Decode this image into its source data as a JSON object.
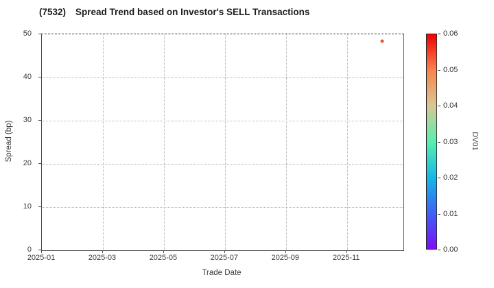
{
  "header": {
    "ticker": "(7532)",
    "title": "Spread Trend based on Investor's SELL Transactions"
  },
  "axes": {
    "xlabel": "Trade Date",
    "ylabel": "Spread (bp)"
  },
  "chart_data": {
    "type": "scatter",
    "title": "(7532)  Spread Trend based on Investor's SELL Transactions",
    "xlabel": "Trade Date",
    "ylabel": "Spread (bp)",
    "x_tick_labels": [
      "2025-01",
      "2025-03",
      "2025-05",
      "2025-07",
      "2025-09",
      "2025-11"
    ],
    "x_tick_month_step": 2,
    "xlim_months": [
      0,
      11.85
    ],
    "ylim": [
      0,
      50
    ],
    "y_ticks": [
      0,
      10,
      20,
      30,
      40,
      50
    ],
    "grid": true,
    "points": [
      {
        "trade_date": "2025-12-05",
        "x_months_from_start": 11.15,
        "spread_bp": 48.4,
        "dv01_est": 0.053,
        "color": "#f4512b"
      }
    ],
    "colorbar": {
      "label": "DV01",
      "min": 0.0,
      "max": 0.06,
      "tick_labels": [
        "0.00",
        "0.01",
        "0.02",
        "0.03",
        "0.04",
        "0.05",
        "0.06"
      ],
      "colormap": "rainbow",
      "gradient_stops_bottom_to_top": [
        "#7d0df8",
        "#3f62f4",
        "#16b8e8",
        "#59efae",
        "#d9c795",
        "#f8834e",
        "#f20000"
      ]
    }
  },
  "colors": {
    "point": "#f4512b",
    "grid": "#b3b3b3",
    "axis": "#4a4a4a",
    "text": "#3a3a3a",
    "title": "#1c1c1c"
  }
}
